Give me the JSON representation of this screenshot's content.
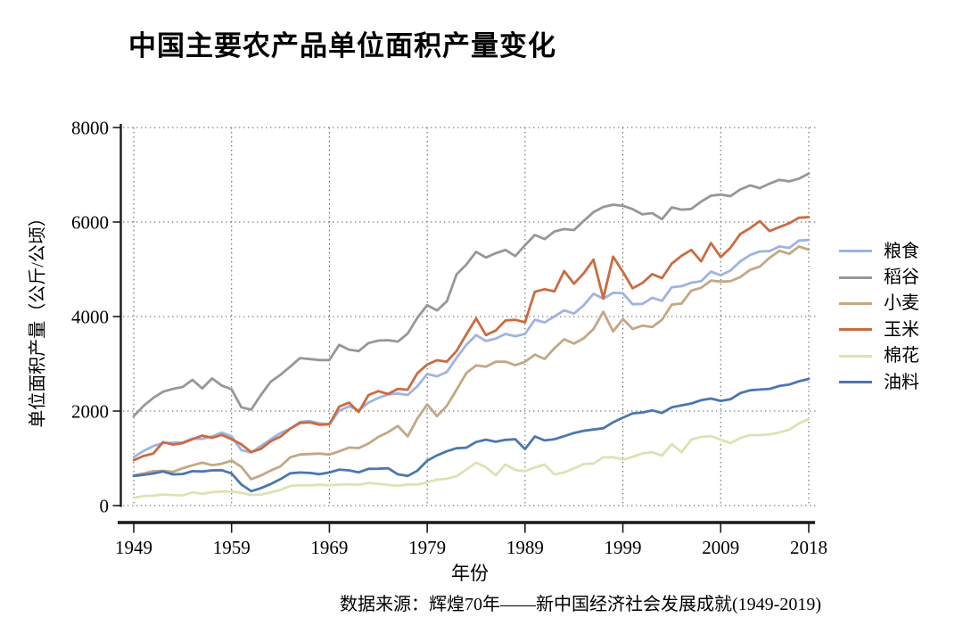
{
  "page": {
    "background": "#ffffff"
  },
  "chart_data": {
    "type": "line",
    "title": "中国主要农产品单位面积产量变化",
    "ylabel": "单位面积产量（公斤/公顷）",
    "xlabel": "年份",
    "caption": "数据来源：辉煌70年——新中国经济社会发展成就(1949-2019)",
    "xlim": [
      1949,
      2018
    ],
    "ylim": [
      0,
      8000
    ],
    "x_ticks": [
      1949,
      1959,
      1969,
      1979,
      1989,
      1999,
      2009,
      2018
    ],
    "y_ticks": [
      0,
      2000,
      4000,
      6000,
      8000
    ],
    "x_frequency": "annual",
    "grid": "dotted-both",
    "legend_position": "right",
    "axis_color": "#1a1a1a",
    "grid_color": "#5a5a5a",
    "series": [
      {
        "name": "粮食",
        "color": "#9fb3e3",
        "values": [
          1029,
          1155,
          1260,
          1322,
          1330,
          1338,
          1417,
          1411,
          1463,
          1548,
          1462,
          1173,
          1122,
          1260,
          1400,
          1538,
          1626,
          1770,
          1788,
          1740,
          1720,
          2010,
          2100,
          2016,
          2180,
          2280,
          2350,
          2371,
          2339,
          2527,
          2785,
          2734,
          2827,
          3124,
          3402,
          3608,
          3483,
          3532,
          3632,
          3583,
          3632,
          3933,
          3876,
          4004,
          4131,
          4063,
          4240,
          4483,
          4377,
          4502,
          4493,
          4261,
          4267,
          4399,
          4333,
          4620,
          4642,
          4716,
          4748,
          4951,
          4871,
          4974,
          5166,
          5302,
          5377,
          5385,
          5483,
          5452,
          5607,
          5621
        ]
      },
      {
        "name": "稻谷",
        "color": "#969798",
        "values": [
          1892,
          2110,
          2280,
          2410,
          2470,
          2510,
          2660,
          2480,
          2690,
          2540,
          2460,
          2080,
          2030,
          2340,
          2620,
          2770,
          2940,
          3120,
          3100,
          3080,
          3080,
          3400,
          3300,
          3270,
          3440,
          3490,
          3500,
          3470,
          3640,
          3978,
          4240,
          4130,
          4320,
          4890,
          5100,
          5370,
          5250,
          5340,
          5410,
          5280,
          5510,
          5726,
          5640,
          5800,
          5850,
          5830,
          6025,
          6210,
          6319,
          6366,
          6345,
          6272,
          6163,
          6189,
          6061,
          6311,
          6260,
          6278,
          6433,
          6556,
          6582,
          6548,
          6688,
          6775,
          6717,
          6813,
          6893,
          6861,
          6917,
          7027
        ]
      },
      {
        "name": "小麦",
        "color": "#c2a884",
        "values": [
          642,
          680,
          728,
          735,
          713,
          790,
          852,
          908,
          855,
          885,
          950,
          818,
          559,
          638,
          742,
          830,
          1020,
          1082,
          1091,
          1100,
          1080,
          1148,
          1228,
          1217,
          1313,
          1453,
          1552,
          1684,
          1464,
          1845,
          2139,
          1892,
          2110,
          2450,
          2804,
          2966,
          2937,
          3044,
          3046,
          2970,
          3043,
          3194,
          3101,
          3331,
          3519,
          3426,
          3541,
          3735,
          4102,
          3685,
          3947,
          3738,
          3808,
          3777,
          3932,
          4252,
          4275,
          4550,
          4608,
          4762,
          4739,
          4748,
          4836,
          4986,
          5056,
          5243,
          5393,
          5327,
          5481,
          5416
        ]
      },
      {
        "name": "玉米",
        "color": "#ca6b41",
        "values": [
          961,
          1050,
          1100,
          1343,
          1290,
          1320,
          1404,
          1482,
          1434,
          1495,
          1405,
          1295,
          1133,
          1200,
          1360,
          1460,
          1626,
          1750,
          1760,
          1710,
          1720,
          2095,
          2180,
          1980,
          2340,
          2420,
          2360,
          2470,
          2450,
          2803,
          2985,
          3075,
          3045,
          3270,
          3622,
          3960,
          3607,
          3703,
          3917,
          3930,
          3880,
          4524,
          4578,
          4533,
          4963,
          4695,
          4917,
          5203,
          4387,
          5268,
          4945,
          4598,
          4712,
          4899,
          4813,
          5120,
          5287,
          5410,
          5167,
          5556,
          5258,
          5454,
          5748,
          5870,
          6018,
          5809,
          5893,
          5973,
          6090,
          6104
        ]
      },
      {
        "name": "棉花",
        "color": "#dce3b2",
        "values": [
          165,
          200,
          210,
          234,
          225,
          215,
          281,
          250,
          285,
          294,
          300,
          270,
          225,
          232,
          280,
          333,
          417,
          430,
          428,
          440,
          430,
          443,
          450,
          440,
          480,
          460,
          437,
          417,
          449,
          445,
          490,
          550,
          568,
          620,
          762,
          908,
          810,
          641,
          872,
          752,
          730,
          807,
          868,
          660,
          700,
          785,
          879,
          890,
          1021,
          1025,
          975,
          1028,
          1102,
          1132,
          1056,
          1300,
          1130,
          1396,
          1455,
          1470,
          1395,
          1320,
          1430,
          1490,
          1490,
          1505,
          1550,
          1605,
          1740,
          1830
        ]
      },
      {
        "name": "油料",
        "color": "#4b77b0",
        "values": [
          625,
          650,
          680,
          720,
          660,
          668,
          729,
          720,
          745,
          750,
          680,
          445,
          303,
          370,
          455,
          560,
          683,
          700,
          690,
          665,
          700,
          760,
          745,
          703,
          777,
          780,
          790,
          663,
          626,
          740,
          950,
          1062,
          1150,
          1213,
          1225,
          1346,
          1395,
          1350,
          1390,
          1403,
          1195,
          1462,
          1380,
          1403,
          1467,
          1536,
          1583,
          1610,
          1636,
          1763,
          1860,
          1950,
          1970,
          2015,
          1960,
          2080,
          2120,
          2160,
          2230,
          2265,
          2215,
          2250,
          2380,
          2440,
          2455,
          2470,
          2530,
          2560,
          2630,
          2680
        ]
      }
    ]
  }
}
